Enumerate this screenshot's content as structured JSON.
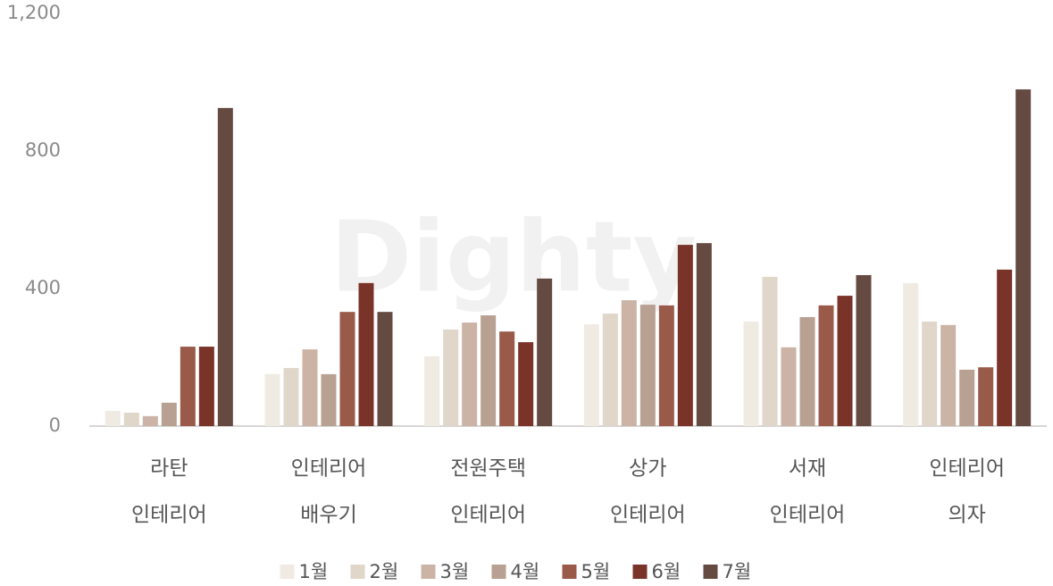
{
  "chart_data": {
    "type": "bar",
    "watermark": "Dighty",
    "categories": [
      [
        "라탄",
        "인테리어"
      ],
      [
        "인테리어",
        "배우기"
      ],
      [
        "전원주택",
        "인테리어"
      ],
      [
        "상가",
        "인테리어"
      ],
      [
        "서재",
        "인테리어"
      ],
      [
        "인테리어",
        "의자"
      ]
    ],
    "series": [
      {
        "name": "1월",
        "color": "#efebe3",
        "values": [
          44,
          151,
          203,
          296,
          304,
          416
        ]
      },
      {
        "name": "2월",
        "color": "#e0d6c9",
        "values": [
          39,
          169,
          281,
          327,
          434,
          304
        ]
      },
      {
        "name": "3월",
        "color": "#cbb3a6",
        "values": [
          29,
          223,
          301,
          366,
          229,
          294
        ]
      },
      {
        "name": "4월",
        "color": "#b8a093",
        "values": [
          68,
          151,
          322,
          353,
          317,
          164
        ]
      },
      {
        "name": "5월",
        "color": "#9a5a4a",
        "values": [
          231,
          332,
          275,
          351,
          351,
          171
        ]
      },
      {
        "name": "6월",
        "color": "#7a3328",
        "values": [
          231,
          416,
          244,
          527,
          379,
          455
        ]
      },
      {
        "name": "7월",
        "color": "#654a42",
        "values": [
          925,
          332,
          429,
          532,
          439,
          979
        ]
      }
    ],
    "ylim": [
      0,
      1200
    ],
    "yticks": [
      0,
      400,
      800,
      {
        "value": 1200,
        "label": "1,200"
      }
    ],
    "grid": false,
    "legend": "bottom"
  }
}
